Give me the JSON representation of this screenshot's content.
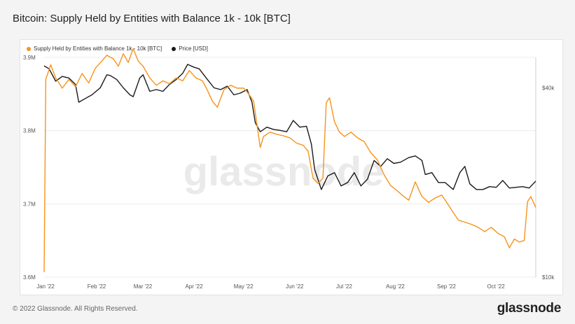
{
  "title": "Bitcoin: Supply Held by Entities with Balance 1k - 10k [BTC]",
  "footer": {
    "copyright": "© 2022 Glassnode. All Rights Reserved.",
    "brand": "glassnode"
  },
  "watermark": "glassnode",
  "colors": {
    "supply": "#f7931a",
    "price": "#1a1a1a"
  },
  "chart_data": {
    "type": "line",
    "legend_position": "top-left",
    "grid": true,
    "x_ticks": [
      "Jan '22",
      "Feb '22",
      "Mar '22",
      "Apr '22",
      "May '22",
      "Jun '22",
      "Jul '22",
      "Aug '22",
      "Sep '22",
      "Oct '22"
    ],
    "x_range": [
      "2022-01-01",
      "2022-10-26"
    ],
    "y_left": {
      "ticks": [
        "3.9M",
        "3.8M",
        "3.7M",
        "3.6M"
      ],
      "tick_values": [
        3900000,
        3800000,
        3700000,
        3600000
      ],
      "range": [
        3600000,
        3900000
      ]
    },
    "y_right": {
      "ticks": [
        "$40k",
        "$10k"
      ],
      "tick_values": [
        40000,
        10000
      ],
      "scale": "log",
      "range": [
        10000,
        50000
      ]
    },
    "series": [
      {
        "name": "Supply Held by Entities with Balance 1k - 10k [BTC]",
        "axis": "left",
        "color": "#f7931a",
        "points": [
          [
            "2022-01-01",
            3607000
          ],
          [
            "2022-01-02",
            3870000
          ],
          [
            "2022-01-05",
            3890000
          ],
          [
            "2022-01-08",
            3872000
          ],
          [
            "2022-01-12",
            3858000
          ],
          [
            "2022-01-16",
            3870000
          ],
          [
            "2022-01-20",
            3860000
          ],
          [
            "2022-01-24",
            3878000
          ],
          [
            "2022-01-28",
            3865000
          ],
          [
            "2022-02-01",
            3885000
          ],
          [
            "2022-02-05",
            3895000
          ],
          [
            "2022-02-08",
            3903000
          ],
          [
            "2022-02-12",
            3898000
          ],
          [
            "2022-02-15",
            3888000
          ],
          [
            "2022-02-18",
            3905000
          ],
          [
            "2022-02-21",
            3893000
          ],
          [
            "2022-02-24",
            3912000
          ],
          [
            "2022-02-27",
            3895000
          ],
          [
            "2022-03-02",
            3888000
          ],
          [
            "2022-03-06",
            3872000
          ],
          [
            "2022-03-10",
            3862000
          ],
          [
            "2022-03-14",
            3868000
          ],
          [
            "2022-03-18",
            3864000
          ],
          [
            "2022-03-22",
            3872000
          ],
          [
            "2022-03-26",
            3868000
          ],
          [
            "2022-03-30",
            3882000
          ],
          [
            "2022-04-03",
            3872000
          ],
          [
            "2022-04-07",
            3868000
          ],
          [
            "2022-04-10",
            3855000
          ],
          [
            "2022-04-13",
            3840000
          ],
          [
            "2022-04-16",
            3832000
          ],
          [
            "2022-04-20",
            3856000
          ],
          [
            "2022-04-24",
            3862000
          ],
          [
            "2022-04-28",
            3858000
          ],
          [
            "2022-05-02",
            3858000
          ],
          [
            "2022-05-05",
            3850000
          ],
          [
            "2022-05-08",
            3840000
          ],
          [
            "2022-05-10",
            3808000
          ],
          [
            "2022-05-12",
            3777000
          ],
          [
            "2022-05-14",
            3792000
          ],
          [
            "2022-05-18",
            3798000
          ],
          [
            "2022-05-22",
            3795000
          ],
          [
            "2022-05-26",
            3793000
          ],
          [
            "2022-05-30",
            3790000
          ],
          [
            "2022-06-03",
            3783000
          ],
          [
            "2022-06-07",
            3780000
          ],
          [
            "2022-06-10",
            3772000
          ],
          [
            "2022-06-13",
            3735000
          ],
          [
            "2022-06-16",
            3728000
          ],
          [
            "2022-06-19",
            3735000
          ],
          [
            "2022-06-21",
            3838000
          ],
          [
            "2022-06-23",
            3845000
          ],
          [
            "2022-06-26",
            3812000
          ],
          [
            "2022-06-29",
            3798000
          ],
          [
            "2022-07-02",
            3792000
          ],
          [
            "2022-07-06",
            3798000
          ],
          [
            "2022-07-10",
            3790000
          ],
          [
            "2022-07-14",
            3785000
          ],
          [
            "2022-07-18",
            3770000
          ],
          [
            "2022-07-22",
            3760000
          ],
          [
            "2022-07-26",
            3740000
          ],
          [
            "2022-07-30",
            3725000
          ],
          [
            "2022-08-03",
            3718000
          ],
          [
            "2022-08-06",
            3712000
          ],
          [
            "2022-08-10",
            3705000
          ],
          [
            "2022-08-14",
            3730000
          ],
          [
            "2022-08-18",
            3710000
          ],
          [
            "2022-08-22",
            3702000
          ],
          [
            "2022-08-26",
            3708000
          ],
          [
            "2022-08-30",
            3712000
          ],
          [
            "2022-09-02",
            3702000
          ],
          [
            "2022-09-06",
            3688000
          ],
          [
            "2022-09-09",
            3678000
          ],
          [
            "2022-09-13",
            3675000
          ],
          [
            "2022-09-17",
            3672000
          ],
          [
            "2022-09-21",
            3668000
          ],
          [
            "2022-09-25",
            3662000
          ],
          [
            "2022-09-29",
            3668000
          ],
          [
            "2022-10-03",
            3660000
          ],
          [
            "2022-10-07",
            3655000
          ],
          [
            "2022-10-10",
            3640000
          ],
          [
            "2022-10-13",
            3652000
          ],
          [
            "2022-10-16",
            3648000
          ],
          [
            "2022-10-19",
            3650000
          ],
          [
            "2022-10-21",
            3703000
          ],
          [
            "2022-10-23",
            3710000
          ],
          [
            "2022-10-26",
            3695000
          ]
        ]
      },
      {
        "name": "Price [USD]",
        "axis": "right",
        "color": "#1a1a1a",
        "points": [
          [
            "2022-01-01",
            47000
          ],
          [
            "2022-01-04",
            46000
          ],
          [
            "2022-01-08",
            42000
          ],
          [
            "2022-01-12",
            43500
          ],
          [
            "2022-01-16",
            43000
          ],
          [
            "2022-01-20",
            41000
          ],
          [
            "2022-01-22",
            36000
          ],
          [
            "2022-01-26",
            37000
          ],
          [
            "2022-01-30",
            38000
          ],
          [
            "2022-02-04",
            40000
          ],
          [
            "2022-02-08",
            44000
          ],
          [
            "2022-02-10",
            43800
          ],
          [
            "2022-02-14",
            42500
          ],
          [
            "2022-02-18",
            40000
          ],
          [
            "2022-02-22",
            38000
          ],
          [
            "2022-02-24",
            37500
          ],
          [
            "2022-02-28",
            43000
          ],
          [
            "2022-03-02",
            44000
          ],
          [
            "2022-03-06",
            39000
          ],
          [
            "2022-03-10",
            39500
          ],
          [
            "2022-03-14",
            39000
          ],
          [
            "2022-03-18",
            41000
          ],
          [
            "2022-03-22",
            42500
          ],
          [
            "2022-03-26",
            44500
          ],
          [
            "2022-03-29",
            47500
          ],
          [
            "2022-04-02",
            46500
          ],
          [
            "2022-04-05",
            46000
          ],
          [
            "2022-04-10",
            42500
          ],
          [
            "2022-04-14",
            40000
          ],
          [
            "2022-04-18",
            39500
          ],
          [
            "2022-04-22",
            40500
          ],
          [
            "2022-04-26",
            38000
          ],
          [
            "2022-04-30",
            38500
          ],
          [
            "2022-05-04",
            39500
          ],
          [
            "2022-05-07",
            36000
          ],
          [
            "2022-05-09",
            31000
          ],
          [
            "2022-05-12",
            29000
          ],
          [
            "2022-05-16",
            30000
          ],
          [
            "2022-05-20",
            29500
          ],
          [
            "2022-05-24",
            29300
          ],
          [
            "2022-05-28",
            29000
          ],
          [
            "2022-06-01",
            31500
          ],
          [
            "2022-06-05",
            30000
          ],
          [
            "2022-06-09",
            30200
          ],
          [
            "2022-06-12",
            26500
          ],
          [
            "2022-06-14",
            22000
          ],
          [
            "2022-06-18",
            19000
          ],
          [
            "2022-06-22",
            21000
          ],
          [
            "2022-06-26",
            21500
          ],
          [
            "2022-06-30",
            19500
          ],
          [
            "2022-07-04",
            20000
          ],
          [
            "2022-07-08",
            21500
          ],
          [
            "2022-07-12",
            19500
          ],
          [
            "2022-07-16",
            20500
          ],
          [
            "2022-07-20",
            23500
          ],
          [
            "2022-07-24",
            22500
          ],
          [
            "2022-07-28",
            23800
          ],
          [
            "2022-08-01",
            23000
          ],
          [
            "2022-08-05",
            23200
          ],
          [
            "2022-08-10",
            24000
          ],
          [
            "2022-08-14",
            24300
          ],
          [
            "2022-08-18",
            23500
          ],
          [
            "2022-08-20",
            21200
          ],
          [
            "2022-08-24",
            21500
          ],
          [
            "2022-08-28",
            20000
          ],
          [
            "2022-09-01",
            20000
          ],
          [
            "2022-09-06",
            19000
          ],
          [
            "2022-09-10",
            21500
          ],
          [
            "2022-09-13",
            22500
          ],
          [
            "2022-09-16",
            19800
          ],
          [
            "2022-09-20",
            19000
          ],
          [
            "2022-09-24",
            19000
          ],
          [
            "2022-09-28",
            19400
          ],
          [
            "2022-10-02",
            19300
          ],
          [
            "2022-10-06",
            20300
          ],
          [
            "2022-10-10",
            19200
          ],
          [
            "2022-10-14",
            19300
          ],
          [
            "2022-10-18",
            19400
          ],
          [
            "2022-10-22",
            19200
          ],
          [
            "2022-10-26",
            20200
          ]
        ]
      }
    ]
  }
}
